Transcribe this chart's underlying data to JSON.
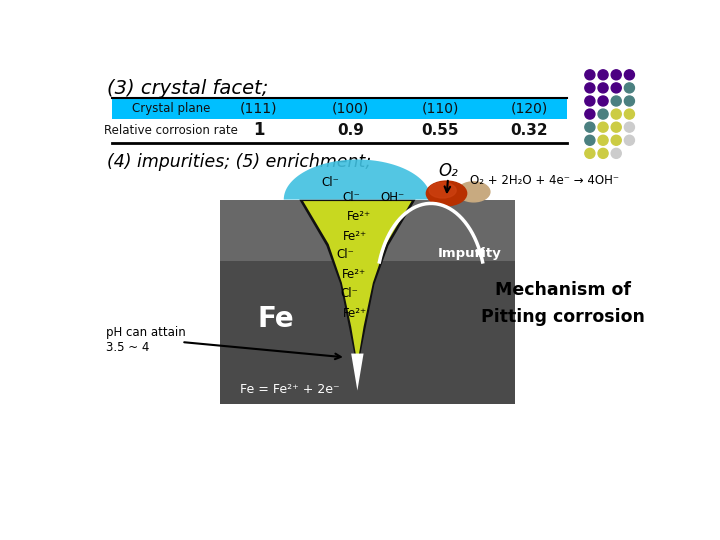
{
  "title": "(3) crystal facet;",
  "table_header": [
    "Crystal plane",
    "(111)",
    "(100)",
    "(110)",
    "(120)"
  ],
  "table_row_label": "Relative corrosion rate",
  "table_values": [
    "1",
    "0.9",
    "0.55",
    "0.32"
  ],
  "header_bg": "#00BFFF",
  "subtitle": "(4) impurities; (5) enrichment;",
  "reaction_label": "O₂",
  "reaction_eq": "O₂ + 2H₂O + 4e⁻ → 4OH⁻",
  "mechanism_text": "Mechanism of\nPitting corrosion",
  "ph_text": "pH can attain\n3.5 ~ 4",
  "fe_eq": "Fe = Fe²⁺ + 2e⁻",
  "bg_color": "#ffffff",
  "dot_grid": [
    [
      "#4B0082",
      "#4B0082",
      "#4B0082",
      "#4B0082"
    ],
    [
      "#4B0082",
      "#4B0082",
      "#4B0082",
      "#4B8080"
    ],
    [
      "#4B0082",
      "#4B0082",
      "#4B8080",
      "#4B8080"
    ],
    [
      "#4B0082",
      "#4B8080",
      "#CCCC44",
      "#CCCC44"
    ],
    [
      "#4B8080",
      "#CCCC44",
      "#CCCC44",
      "#CCCCCC"
    ],
    [
      "#4B8080",
      "#CCCC44",
      "#CCCC44",
      "#CCCCCC"
    ],
    [
      "#CCCC44",
      "#CCCC44",
      "#CCCCCC",
      null
    ]
  ]
}
